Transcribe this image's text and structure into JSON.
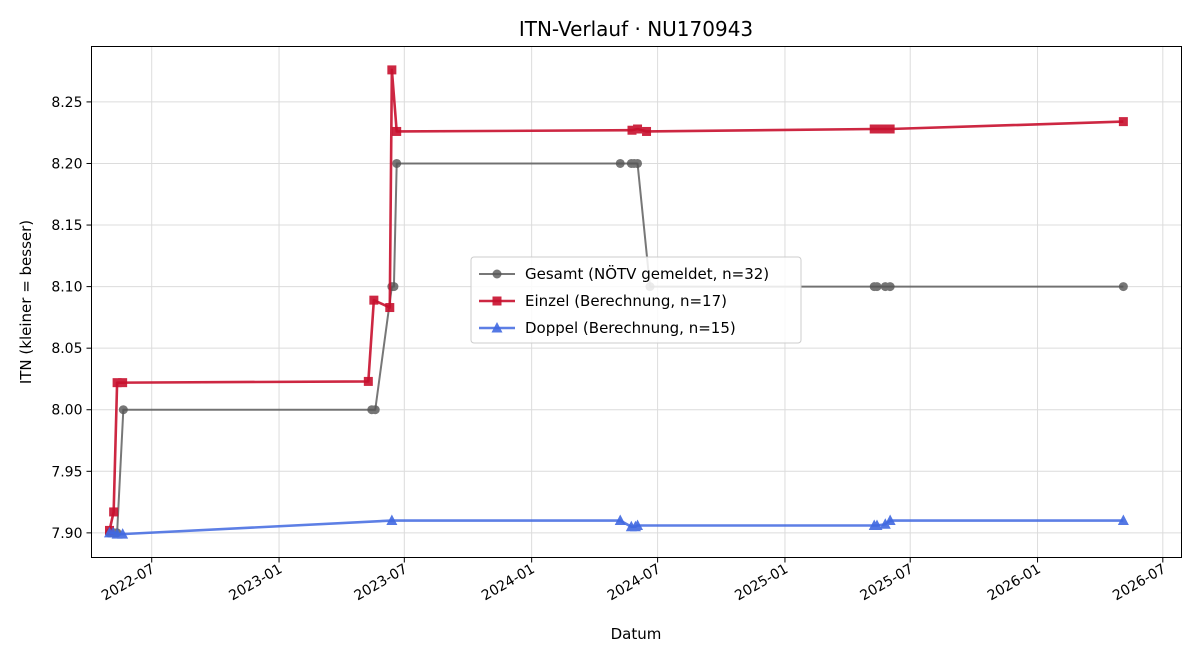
{
  "chart_data": {
    "type": "line",
    "title": "ITN-Verlauf · NU170943",
    "xlabel": "Datum",
    "ylabel": "ITN  (kleiner = besser)",
    "x_type": "date",
    "xlim": [
      "2022-04-05",
      "2026-07-28"
    ],
    "ylim": [
      7.88,
      8.295
    ],
    "x_ticks": [
      {
        "date": "2022-07-01",
        "label": "2022-07"
      },
      {
        "date": "2023-01-01",
        "label": "2023-01"
      },
      {
        "date": "2023-07-01",
        "label": "2023-07"
      },
      {
        "date": "2024-01-01",
        "label": "2024-01"
      },
      {
        "date": "2024-07-01",
        "label": "2024-07"
      },
      {
        "date": "2025-01-01",
        "label": "2025-01"
      },
      {
        "date": "2025-07-01",
        "label": "2025-07"
      },
      {
        "date": "2026-01-01",
        "label": "2026-01"
      },
      {
        "date": "2026-07-01",
        "label": "2026-07"
      }
    ],
    "y_ticks": [
      {
        "value": 7.9,
        "label": "7.90"
      },
      {
        "value": 7.95,
        "label": "7.95"
      },
      {
        "value": 8.0,
        "label": "8.00"
      },
      {
        "value": 8.05,
        "label": "8.05"
      },
      {
        "value": 8.1,
        "label": "8.10"
      },
      {
        "value": 8.15,
        "label": "8.15"
      },
      {
        "value": 8.2,
        "label": "8.20"
      },
      {
        "value": 8.25,
        "label": "8.25"
      }
    ],
    "grid": true,
    "legend_position": "center",
    "series": [
      {
        "name": "Gesamt (NÖTV gemeldet, n=32)",
        "color": "#555555",
        "marker": "circle",
        "points": [
          [
            "2022-05-01",
            7.9
          ],
          [
            "2022-05-04",
            7.9
          ],
          [
            "2022-05-08",
            7.9
          ],
          [
            "2022-05-12",
            7.9
          ],
          [
            "2022-05-21",
            8.0
          ],
          [
            "2023-05-15",
            8.0
          ],
          [
            "2023-05-20",
            8.0
          ],
          [
            "2023-06-13",
            8.1
          ],
          [
            "2023-06-16",
            8.1
          ],
          [
            "2023-06-20",
            8.2
          ],
          [
            "2024-05-08",
            8.2
          ],
          [
            "2024-05-24",
            8.2
          ],
          [
            "2024-05-28",
            8.2
          ],
          [
            "2024-06-02",
            8.2
          ],
          [
            "2024-06-20",
            8.1
          ],
          [
            "2025-05-10",
            8.1
          ],
          [
            "2025-05-14",
            8.1
          ],
          [
            "2025-05-26",
            8.1
          ],
          [
            "2025-06-02",
            8.1
          ],
          [
            "2026-05-05",
            8.1
          ]
        ]
      },
      {
        "name": "Einzel (Berechnung, n=17)",
        "color": "#c8102e",
        "marker": "square",
        "points": [
          [
            "2022-05-01",
            7.902
          ],
          [
            "2022-05-07",
            7.917
          ],
          [
            "2022-05-12",
            8.022
          ],
          [
            "2022-05-20",
            8.022
          ],
          [
            "2023-05-10",
            8.023
          ],
          [
            "2023-05-18",
            8.089
          ],
          [
            "2023-06-10",
            8.083
          ],
          [
            "2023-06-13",
            8.276
          ],
          [
            "2023-06-20",
            8.226
          ],
          [
            "2024-05-25",
            8.227
          ],
          [
            "2024-06-02",
            8.228
          ],
          [
            "2024-06-15",
            8.226
          ],
          [
            "2025-05-10",
            8.228
          ],
          [
            "2025-05-22",
            8.228
          ],
          [
            "2025-06-02",
            8.228
          ],
          [
            "2026-05-05",
            8.234
          ]
        ]
      },
      {
        "name": "Doppel (Berechnung, n=15)",
        "color": "#4169e1",
        "marker": "triangle",
        "points": [
          [
            "2022-05-01",
            7.9
          ],
          [
            "2022-05-06",
            7.9
          ],
          [
            "2022-05-12",
            7.899
          ],
          [
            "2022-05-20",
            7.899
          ],
          [
            "2023-06-13",
            7.91
          ],
          [
            "2024-05-08",
            7.91
          ],
          [
            "2024-05-24",
            7.905
          ],
          [
            "2024-05-30",
            7.905
          ],
          [
            "2024-06-02",
            7.906
          ],
          [
            "2025-05-10",
            7.906
          ],
          [
            "2025-05-14",
            7.906
          ],
          [
            "2025-05-26",
            7.907
          ],
          [
            "2025-06-02",
            7.91
          ],
          [
            "2026-05-05",
            7.91
          ]
        ]
      }
    ]
  }
}
